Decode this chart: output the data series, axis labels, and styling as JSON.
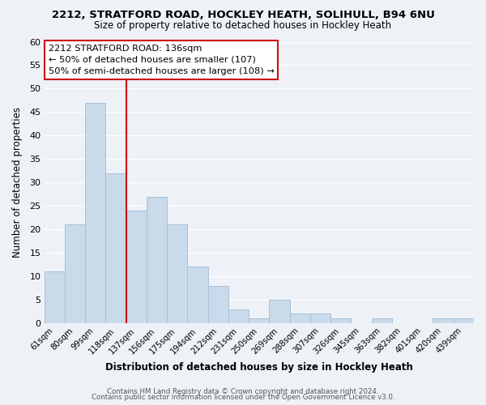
{
  "title_line1": "2212, STRATFORD ROAD, HOCKLEY HEATH, SOLIHULL, B94 6NU",
  "title_line2": "Size of property relative to detached houses in Hockley Heath",
  "xlabel": "Distribution of detached houses by size in Hockley Heath",
  "ylabel": "Number of detached properties",
  "bar_labels": [
    "61sqm",
    "80sqm",
    "99sqm",
    "118sqm",
    "137sqm",
    "156sqm",
    "175sqm",
    "194sqm",
    "212sqm",
    "231sqm",
    "250sqm",
    "269sqm",
    "288sqm",
    "307sqm",
    "326sqm",
    "345sqm",
    "363sqm",
    "382sqm",
    "401sqm",
    "420sqm",
    "439sqm"
  ],
  "bar_values": [
    11,
    21,
    47,
    32,
    24,
    27,
    21,
    12,
    8,
    3,
    1,
    5,
    2,
    2,
    1,
    0,
    1,
    0,
    0,
    1,
    1
  ],
  "bar_color": "#c9daea",
  "bar_edgecolor": "#a8c0d6",
  "vline_color": "#cc1111",
  "annotation_text": "2212 STRATFORD ROAD: 136sqm\n← 50% of detached houses are smaller (107)\n50% of semi-detached houses are larger (108) →",
  "ylim": [
    0,
    60
  ],
  "yticks": [
    0,
    5,
    10,
    15,
    20,
    25,
    30,
    35,
    40,
    45,
    50,
    55,
    60
  ],
  "footer_line1": "Contains HM Land Registry data © Crown copyright and database right 2024.",
  "footer_line2": "Contains public sector information licensed under the Open Government Licence v3.0.",
  "background_color": "#eef2f7",
  "grid_color": "#ffffff"
}
